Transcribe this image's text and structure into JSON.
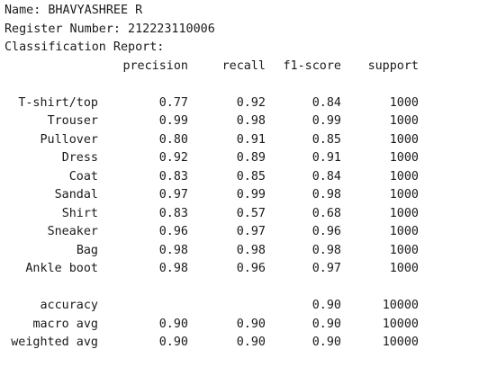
{
  "header": {
    "name_line": "Name: BHAVYASHREE R",
    "register_line": "Register Number: 212223110006",
    "report_title": "Classification Report:"
  },
  "report": {
    "columns": [
      "precision",
      "recall",
      "f1-score",
      "support"
    ],
    "classes": [
      {
        "label": "T-shirt/top",
        "precision": "0.77",
        "recall": "0.92",
        "f1": "0.84",
        "support": "1000"
      },
      {
        "label": "Trouser",
        "precision": "0.99",
        "recall": "0.98",
        "f1": "0.99",
        "support": "1000"
      },
      {
        "label": "Pullover",
        "precision": "0.80",
        "recall": "0.91",
        "f1": "0.85",
        "support": "1000"
      },
      {
        "label": "Dress",
        "precision": "0.92",
        "recall": "0.89",
        "f1": "0.91",
        "support": "1000"
      },
      {
        "label": "Coat",
        "precision": "0.83",
        "recall": "0.85",
        "f1": "0.84",
        "support": "1000"
      },
      {
        "label": "Sandal",
        "precision": "0.97",
        "recall": "0.99",
        "f1": "0.98",
        "support": "1000"
      },
      {
        "label": "Shirt",
        "precision": "0.83",
        "recall": "0.57",
        "f1": "0.68",
        "support": "1000"
      },
      {
        "label": "Sneaker",
        "precision": "0.96",
        "recall": "0.97",
        "f1": "0.96",
        "support": "1000"
      },
      {
        "label": "Bag",
        "precision": "0.98",
        "recall": "0.98",
        "f1": "0.98",
        "support": "1000"
      },
      {
        "label": "Ankle boot",
        "precision": "0.98",
        "recall": "0.96",
        "f1": "0.97",
        "support": "1000"
      }
    ],
    "summary": [
      {
        "label": "accuracy",
        "precision": "",
        "recall": "",
        "f1": "0.90",
        "support": "10000"
      },
      {
        "label": "macro avg",
        "precision": "0.90",
        "recall": "0.90",
        "f1": "0.90",
        "support": "10000"
      },
      {
        "label": "weighted avg",
        "precision": "0.90",
        "recall": "0.90",
        "f1": "0.90",
        "support": "10000"
      }
    ]
  }
}
